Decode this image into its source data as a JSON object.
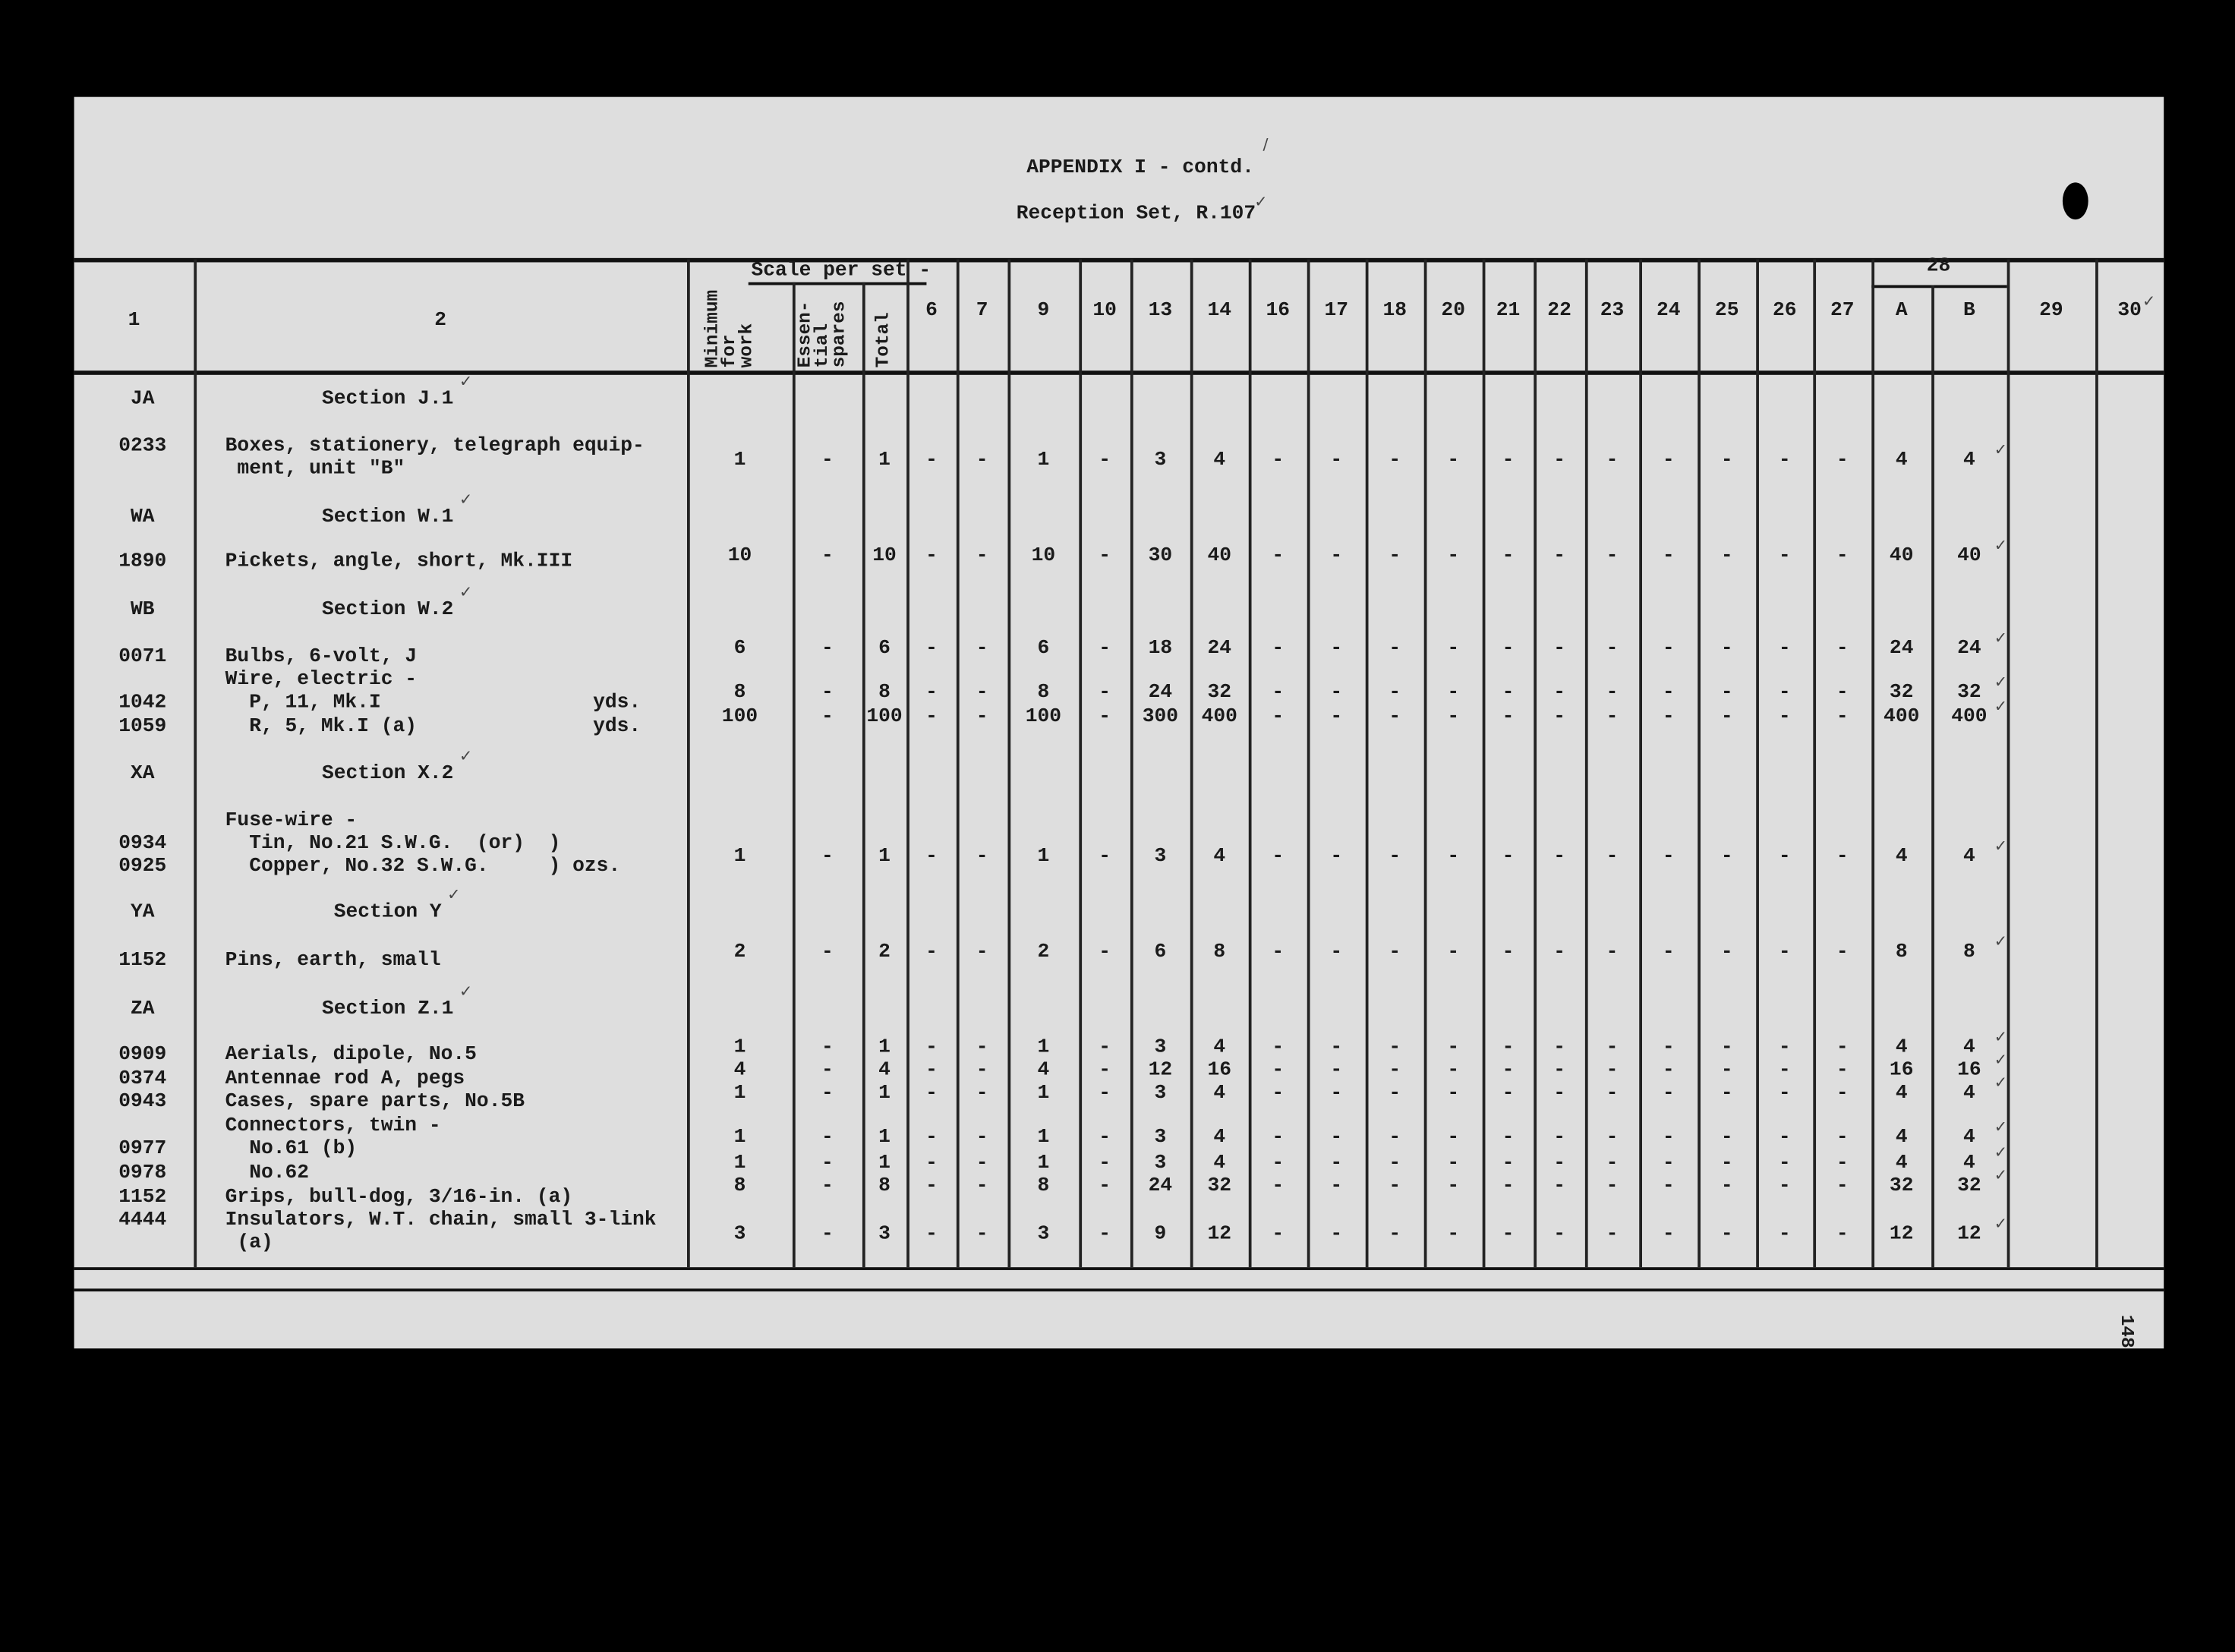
{
  "header": {
    "title": "APPENDIX I - contd.",
    "subtitle": "Reception Set, R.107",
    "page_number": "148"
  },
  "table": {
    "col1": "1",
    "col2": "2",
    "scale_group": "Scale per set -",
    "scale_cols": [
      "Minimum\nfor\nwork",
      "Essen-\ntial\nspares",
      "Total"
    ],
    "numbered_cols": [
      "6",
      "7",
      "9",
      "10",
      "13",
      "14",
      "16",
      "17",
      "18",
      "20",
      "21",
      "22",
      "23",
      "24",
      "25",
      "26",
      "27"
    ],
    "col28": "28",
    "col28_sub": [
      "A",
      "B"
    ],
    "tail_cols": [
      "29",
      "30"
    ],
    "rows": [
      {
        "code": "JA",
        "section": "Section J.1"
      },
      {
        "code": "0233",
        "lines": [
          "Boxes, stationery, telegraph equip-",
          " ment, unit \"B\""
        ],
        "values": [
          "1",
          "-",
          "1",
          "-",
          "-",
          "1",
          "-",
          "3",
          "4",
          "-",
          "-",
          "-",
          "-",
          "-",
          "-",
          "-",
          "-",
          "-",
          "-",
          "-",
          "4",
          "4"
        ]
      },
      {
        "code": "WA",
        "section": "Section W.1"
      },
      {
        "code": "1890",
        "lines": [
          "Pickets, angle, short, Mk.III"
        ],
        "values": [
          "10",
          "-",
          "10",
          "-",
          "-",
          "10",
          "-",
          "30",
          "40",
          "-",
          "-",
          "-",
          "-",
          "-",
          "-",
          "-",
          "-",
          "-",
          "-",
          "-",
          "40",
          "40"
        ]
      },
      {
        "code": "WB",
        "section": "Section W.2"
      },
      {
        "code": "0071",
        "lines": [
          "Bulbs, 6-volt, J"
        ],
        "values": [
          "6",
          "-",
          "6",
          "-",
          "-",
          "6",
          "-",
          "18",
          "24",
          "-",
          "-",
          "-",
          "-",
          "-",
          "-",
          "-",
          "-",
          "-",
          "-",
          "-",
          "24",
          "24"
        ]
      },
      {
        "code": "",
        "lines": [
          "Wire, electric -"
        ]
      },
      {
        "code": "1042",
        "lines": [
          "  P, 11, Mk.I"
        ],
        "unit": "yds.",
        "values": [
          "8",
          "-",
          "8",
          "-",
          "-",
          "8",
          "-",
          "24",
          "32",
          "-",
          "-",
          "-",
          "-",
          "-",
          "-",
          "-",
          "-",
          "-",
          "-",
          "-",
          "32",
          "32"
        ]
      },
      {
        "code": "1059",
        "lines": [
          "  R, 5, Mk.I (a)"
        ],
        "unit": "yds.",
        "values": [
          "100",
          "-",
          "100",
          "-",
          "-",
          "100",
          "-",
          "300",
          "400",
          "-",
          "-",
          "-",
          "-",
          "-",
          "-",
          "-",
          "-",
          "-",
          "-",
          "-",
          "400",
          "400"
        ]
      },
      {
        "code": "XA",
        "section": "Section X.2"
      },
      {
        "code": "",
        "lines": [
          "Fuse-wire -"
        ]
      },
      {
        "code": "0934",
        "lines": [
          "  Tin, No.21 S.W.G.  (or)  )"
        ]
      },
      {
        "code": "0925",
        "lines": [
          "  Copper, No.32 S.W.G.     ) ozs."
        ],
        "values": [
          "1",
          "-",
          "1",
          "-",
          "-",
          "1",
          "-",
          "3",
          "4",
          "-",
          "-",
          "-",
          "-",
          "-",
          "-",
          "-",
          "-",
          "-",
          "-",
          "-",
          "4",
          "4"
        ]
      },
      {
        "code": "YA",
        "section": "Section Y"
      },
      {
        "code": "1152",
        "lines": [
          "Pins, earth, small"
        ],
        "values": [
          "2",
          "-",
          "2",
          "-",
          "-",
          "2",
          "-",
          "6",
          "8",
          "-",
          "-",
          "-",
          "-",
          "-",
          "-",
          "-",
          "-",
          "-",
          "-",
          "-",
          "8",
          "8"
        ]
      },
      {
        "code": "ZA",
        "section": "Section Z.1"
      },
      {
        "code": "0909",
        "lines": [
          "Aerials, dipole, No.5"
        ],
        "values": [
          "1",
          "-",
          "1",
          "-",
          "-",
          "1",
          "-",
          "3",
          "4",
          "-",
          "-",
          "-",
          "-",
          "-",
          "-",
          "-",
          "-",
          "-",
          "-",
          "-",
          "4",
          "4"
        ]
      },
      {
        "code": "0374",
        "lines": [
          "Antennae rod A, pegs"
        ],
        "values": [
          "4",
          "-",
          "4",
          "-",
          "-",
          "4",
          "-",
          "12",
          "16",
          "-",
          "-",
          "-",
          "-",
          "-",
          "-",
          "-",
          "-",
          "-",
          "-",
          "-",
          "16",
          "16"
        ]
      },
      {
        "code": "0943",
        "lines": [
          "Cases, spare parts, No.5B"
        ],
        "values": [
          "1",
          "-",
          "1",
          "-",
          "-",
          "1",
          "-",
          "3",
          "4",
          "-",
          "-",
          "-",
          "-",
          "-",
          "-",
          "-",
          "-",
          "-",
          "-",
          "-",
          "4",
          "4"
        ]
      },
      {
        "code": "",
        "lines": [
          "Connectors, twin -"
        ]
      },
      {
        "code": "0977",
        "lines": [
          "  No.61 (b)"
        ],
        "values": [
          "1",
          "-",
          "1",
          "-",
          "-",
          "1",
          "-",
          "3",
          "4",
          "-",
          "-",
          "-",
          "-",
          "-",
          "-",
          "-",
          "-",
          "-",
          "-",
          "-",
          "4",
          "4"
        ]
      },
      {
        "code": "0978",
        "lines": [
          "  No.62"
        ],
        "values": [
          "1",
          "-",
          "1",
          "-",
          "-",
          "1",
          "-",
          "3",
          "4",
          "-",
          "-",
          "-",
          "-",
          "-",
          "-",
          "-",
          "-",
          "-",
          "-",
          "-",
          "4",
          "4"
        ]
      },
      {
        "code": "1152",
        "lines": [
          "Grips, bull-dog, 3/16-in. (a)"
        ],
        "values": [
          "8",
          "-",
          "8",
          "-",
          "-",
          "8",
          "-",
          "24",
          "32",
          "-",
          "-",
          "-",
          "-",
          "-",
          "-",
          "-",
          "-",
          "-",
          "-",
          "-",
          "32",
          "32"
        ]
      },
      {
        "code": "4444",
        "lines": [
          "Insulators, W.T. chain, small 3-link",
          " (a)"
        ],
        "values": [
          "3",
          "-",
          "3",
          "-",
          "-",
          "3",
          "-",
          "9",
          "12",
          "-",
          "-",
          "-",
          "-",
          "-",
          "-",
          "-",
          "-",
          "-",
          "-",
          "-",
          "12",
          "12"
        ]
      }
    ]
  }
}
